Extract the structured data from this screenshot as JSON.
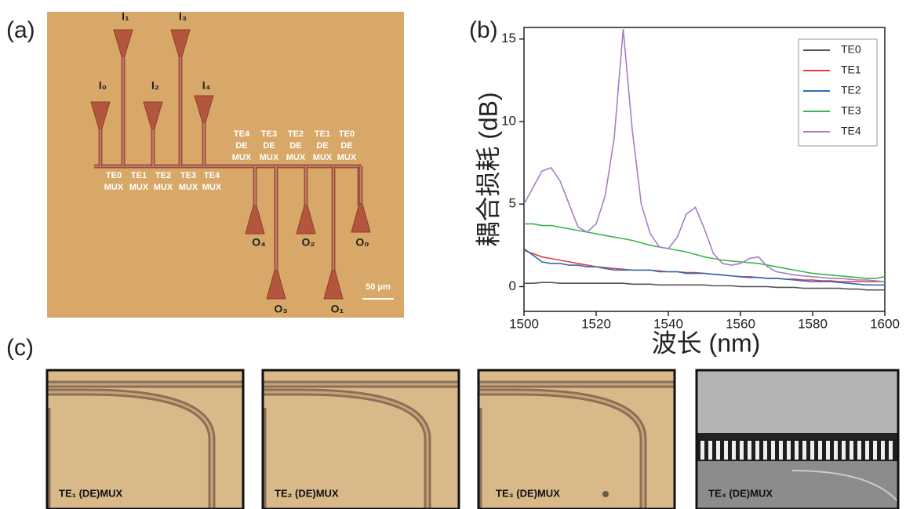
{
  "panel_labels": [
    "(a)",
    "(b)",
    "(c)"
  ],
  "panel_a": {
    "inputs": [
      "I₀",
      "I₁",
      "I₂",
      "I₃",
      "I₄"
    ],
    "mux_labels": [
      [
        "TE0",
        "MUX"
      ],
      [
        "TE1",
        "MUX"
      ],
      [
        "TE2",
        "MUX"
      ],
      [
        "TE3",
        "MUX"
      ],
      [
        "TE4",
        "MUX"
      ]
    ],
    "demux_labels": [
      [
        "TE4",
        "DE",
        "MUX"
      ],
      [
        "TE3",
        "DE",
        "MUX"
      ],
      [
        "TE2",
        "DE",
        "MUX"
      ],
      [
        "TE1",
        "DE",
        "MUX"
      ],
      [
        "TE0",
        "DE",
        "MUX"
      ]
    ],
    "outputs": [
      "O₀",
      "O₁",
      "O₂",
      "O₃",
      "O₄"
    ],
    "scale_bar": "50 μm"
  },
  "chart_data": {
    "type": "line",
    "x_label": "波长 (nm)",
    "y_label": "耦合损耗 (dB)",
    "x": [
      1500,
      1502.5,
      1505,
      1507.5,
      1510,
      1512.5,
      1515,
      1517.5,
      1520,
      1522.5,
      1525,
      1527.5,
      1530,
      1532.5,
      1535,
      1537.5,
      1540,
      1542.5,
      1545,
      1547.5,
      1550,
      1552.5,
      1555,
      1557.5,
      1560,
      1562.5,
      1565,
      1567.5,
      1570,
      1572.5,
      1575,
      1577.5,
      1580,
      1582.5,
      1585,
      1587.5,
      1590,
      1592.5,
      1595,
      1597.5,
      1600
    ],
    "series": [
      {
        "name": "TE0",
        "color": "#555555",
        "values": [
          0.2,
          0.2,
          0.25,
          0.25,
          0.2,
          0.2,
          0.2,
          0.2,
          0.2,
          0.2,
          0.2,
          0.2,
          0.15,
          0.15,
          0.15,
          0.1,
          0.1,
          0.1,
          0.1,
          0.1,
          0.1,
          0.05,
          0.05,
          0.05,
          0.0,
          0.0,
          0.0,
          0.0,
          -0.05,
          -0.05,
          -0.05,
          -0.1,
          -0.1,
          -0.1,
          -0.1,
          -0.1,
          -0.15,
          -0.15,
          -0.2,
          -0.2,
          -0.2
        ]
      },
      {
        "name": "TE1",
        "color": "#e0403a",
        "values": [
          2.2,
          2.0,
          1.8,
          1.7,
          1.6,
          1.5,
          1.4,
          1.3,
          1.2,
          1.15,
          1.1,
          1.05,
          1.0,
          1.0,
          1.0,
          0.95,
          0.9,
          0.9,
          0.85,
          0.85,
          0.8,
          0.75,
          0.7,
          0.65,
          0.6,
          0.6,
          0.55,
          0.5,
          0.5,
          0.45,
          0.45,
          0.4,
          0.4,
          0.35,
          0.35,
          0.3,
          0.3,
          0.3,
          0.3,
          0.3,
          0.3
        ]
      },
      {
        "name": "TE2",
        "color": "#2e6bbd",
        "values": [
          2.3,
          1.9,
          1.5,
          1.4,
          1.4,
          1.3,
          1.3,
          1.2,
          1.2,
          1.1,
          1.0,
          1.0,
          1.0,
          1.0,
          1.0,
          0.9,
          0.9,
          0.9,
          0.8,
          0.8,
          0.8,
          0.75,
          0.7,
          0.65,
          0.6,
          0.55,
          0.55,
          0.5,
          0.5,
          0.45,
          0.4,
          0.35,
          0.3,
          0.3,
          0.3,
          0.25,
          0.2,
          0.15,
          0.1,
          0.1,
          0.1
        ]
      },
      {
        "name": "TE3",
        "color": "#3cb44b",
        "values": [
          3.8,
          3.8,
          3.7,
          3.7,
          3.6,
          3.5,
          3.4,
          3.3,
          3.2,
          3.1,
          3.0,
          2.9,
          2.8,
          2.65,
          2.5,
          2.4,
          2.3,
          2.2,
          2.1,
          1.95,
          1.8,
          1.7,
          1.6,
          1.55,
          1.5,
          1.45,
          1.4,
          1.3,
          1.2,
          1.1,
          1.0,
          0.9,
          0.8,
          0.75,
          0.7,
          0.65,
          0.6,
          0.55,
          0.5,
          0.5,
          0.6
        ]
      },
      {
        "name": "TE4",
        "color": "#a77cc9",
        "values": [
          5.0,
          6.0,
          7.0,
          7.2,
          6.4,
          5.0,
          3.6,
          3.3,
          3.8,
          5.5,
          9.0,
          15.6,
          9.5,
          5.0,
          3.2,
          2.4,
          2.3,
          3.0,
          4.4,
          4.8,
          3.5,
          2.0,
          1.4,
          1.3,
          1.4,
          1.7,
          1.8,
          1.2,
          0.9,
          0.8,
          0.7,
          0.65,
          0.6,
          0.55,
          0.5,
          0.5,
          0.45,
          0.4,
          0.4,
          0.35,
          0.3
        ]
      }
    ],
    "xlim": [
      1500,
      1600
    ],
    "xticks": [
      1500,
      1520,
      1540,
      1560,
      1580,
      1600
    ],
    "ylim": [
      -1.5,
      15.7
    ],
    "yticks": [
      0,
      5,
      10,
      15
    ],
    "legend": "top-right"
  },
  "panel_c": {
    "captions": [
      "TE₁ (DE)MUX",
      "TE₂ (DE)MUX",
      "TE₃ (DE)MUX",
      "TE₄ (DE)MUX"
    ]
  }
}
